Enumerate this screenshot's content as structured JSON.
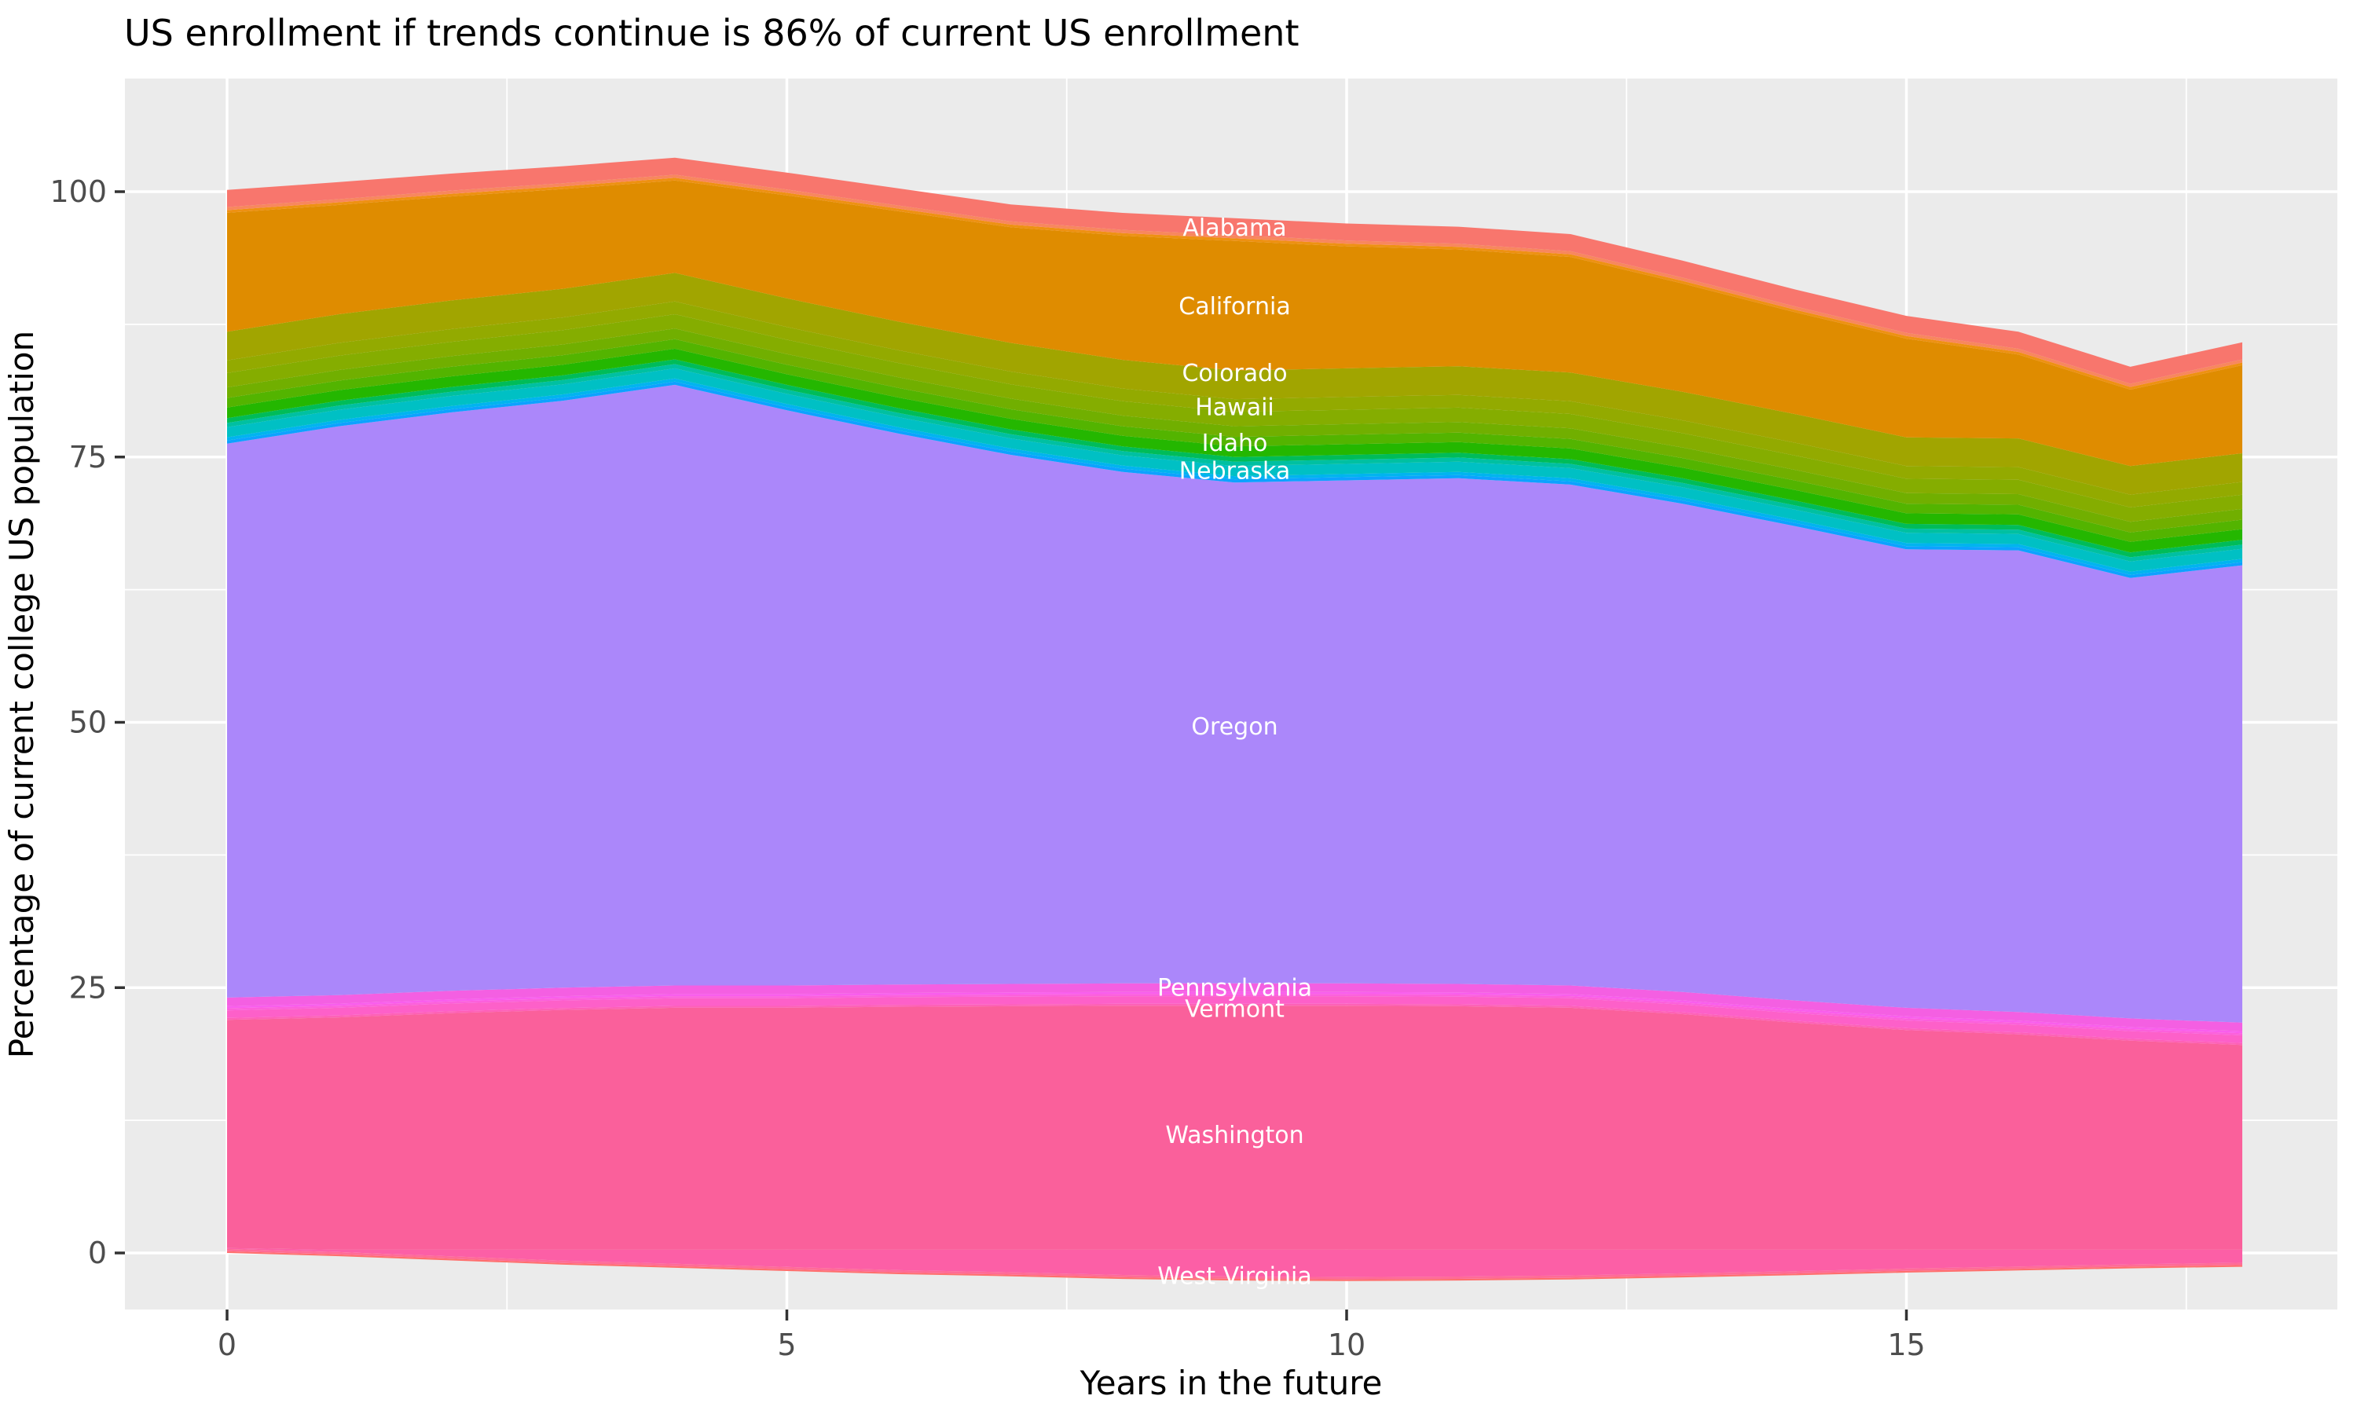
{
  "title": "US enrollment if trends continue is 86% of current US enrollment",
  "axes": {
    "x_title": "Years in the future",
    "y_title": "Percentage of current college US population"
  },
  "chart_data": {
    "type": "area",
    "stacked": true,
    "title": "US enrollment if trends continue is 86% of current US enrollment",
    "xlabel": "Years in the future",
    "ylabel": "Percentage of current college US population",
    "x": [
      0,
      1,
      2,
      3,
      4,
      5,
      6,
      7,
      8,
      9,
      10,
      11,
      12,
      13,
      14,
      15,
      16,
      17,
      18
    ],
    "xlim": [
      -0.9,
      18.9
    ],
    "ylim": [
      -5.3,
      110.7
    ],
    "x_ticks": [
      0,
      5,
      10,
      15
    ],
    "y_ticks": [
      0,
      25,
      50,
      75,
      100
    ],
    "x_minor": [
      2.5,
      7.5,
      12.5,
      17.5
    ],
    "y_minor": [
      12.5,
      37.5,
      62.5,
      87.5
    ],
    "grid": "on",
    "legend_position": "none",
    "panel_bg": "#EBEBEB",
    "grid_color": "#FFFFFF",
    "tick_text_color": "#4D4D4D",
    "tick_mark_color": "#333333",
    "state_label_color": "#FFFFFF",
    "label_x": 9,
    "note": "Stacked share of current US college population by state; stack baseline dips below 0 in mid years (negative projected change for bottom state). Thin unlabeled strata are additional states too small to label.",
    "baseline": [
      0,
      -0.3,
      -0.7,
      -1.1,
      -1.4,
      -1.7,
      -2.0,
      -2.2,
      -2.45,
      -2.6,
      -2.65,
      -2.6,
      -2.5,
      -2.3,
      -2.1,
      -1.85,
      -1.65,
      -1.45,
      -1.3
    ],
    "series": [
      {
        "name": "unlabeled-band-01",
        "color": "#FF6F6E",
        "value": 0.16
      },
      {
        "name": "unlabeled-band-02",
        "color": "#FF6B97",
        "value": 0.22
      },
      {
        "name": "West Virginia",
        "color": "#FC5FA6",
        "label_y": -2.2,
        "values": [
          0.08,
          0.22,
          0.62,
          1.02,
          1.32,
          1.62,
          1.92,
          2.12,
          2.37,
          2.52,
          2.57,
          2.52,
          2.42,
          2.22,
          2.02,
          1.77,
          1.57,
          1.37,
          1.22
        ]
      },
      {
        "name": "Washington",
        "color": "#FA609B",
        "label_y": 11.1,
        "values": [
          21.5,
          21.9,
          22.3,
          22.6,
          22.8,
          22.8,
          22.9,
          22.95,
          23.0,
          23.0,
          23.0,
          22.95,
          22.8,
          22.2,
          21.4,
          20.7,
          20.3,
          19.7,
          19.3
        ]
      },
      {
        "name": "unlabeled-band-03",
        "color": "#FE61B7",
        "value": 0.18
      },
      {
        "name": "Vermont",
        "color": "#FD60C9",
        "label_y": 23.0,
        "value": 0.72
      },
      {
        "name": "unlabeled-band-04",
        "color": "#FC60DC",
        "value": 0.2
      },
      {
        "name": "unlabeled-band-05",
        "color": "#F95EED",
        "value": 0.2
      },
      {
        "name": "Pennsylvania",
        "color": "#F45FE2",
        "label_y": 25.0,
        "value": 0.8
      },
      {
        "name": "Oregon",
        "color": "#AB87FA",
        "label_y": 49.6,
        "values": [
          52.2,
          53.6,
          54.5,
          55.3,
          56.6,
          54.2,
          51.9,
          49.85,
          48.2,
          47.2,
          47.4,
          47.65,
          47.2,
          46.0,
          44.7,
          43.2,
          43.5,
          41.5,
          43.1
        ]
      },
      {
        "name": "unlabeled-band-06",
        "color": "#0DA2FF",
        "value": 0.3
      },
      {
        "name": "unlabeled-band-07",
        "color": "#00B4EF",
        "value": 0.3
      },
      {
        "name": "Nebraska",
        "color": "#00C0C4",
        "label_y": 73.7,
        "value": 0.95
      },
      {
        "name": "unlabeled-band-08",
        "color": "#00C0A1",
        "value": 0.4
      },
      {
        "name": "unlabeled-band-09",
        "color": "#00BC59",
        "value": 0.45
      },
      {
        "name": "Idaho",
        "color": "#24B700",
        "label_y": 76.3,
        "value": 1.0
      },
      {
        "name": "unlabeled-band-10",
        "color": "#53B400",
        "value": 0.9
      },
      {
        "name": "unlabeled-band-11",
        "color": "#71AF00",
        "value": 1.0
      },
      {
        "name": "Hawaii",
        "color": "#85AD00",
        "label_y": 79.7,
        "value": 1.35
      },
      {
        "name": "unlabeled-band-12",
        "color": "#93AA00",
        "value": 1.2
      },
      {
        "name": "Colorado",
        "color": "#A1A500",
        "label_y": 82.9,
        "value": 2.7
      },
      {
        "name": "California",
        "color": "#DF8C00",
        "label_y": 89.2,
        "values": [
          11.2,
          10.3,
          9.8,
          9.4,
          8.7,
          9.7,
          10.4,
          10.9,
          11.7,
          12.2,
          11.5,
          11.0,
          10.9,
          10.2,
          9.6,
          9.3,
          7.9,
          7.2,
          8.3
        ]
      },
      {
        "name": "unlabeled-band-13",
        "color": "#EE9112",
        "value": 0.25
      },
      {
        "name": "unlabeled-band-14",
        "color": "#F8875E",
        "value": 0.3
      },
      {
        "name": "Alabama",
        "color": "#F8766D",
        "label_y": 96.6,
        "value": 1.6
      }
    ]
  }
}
